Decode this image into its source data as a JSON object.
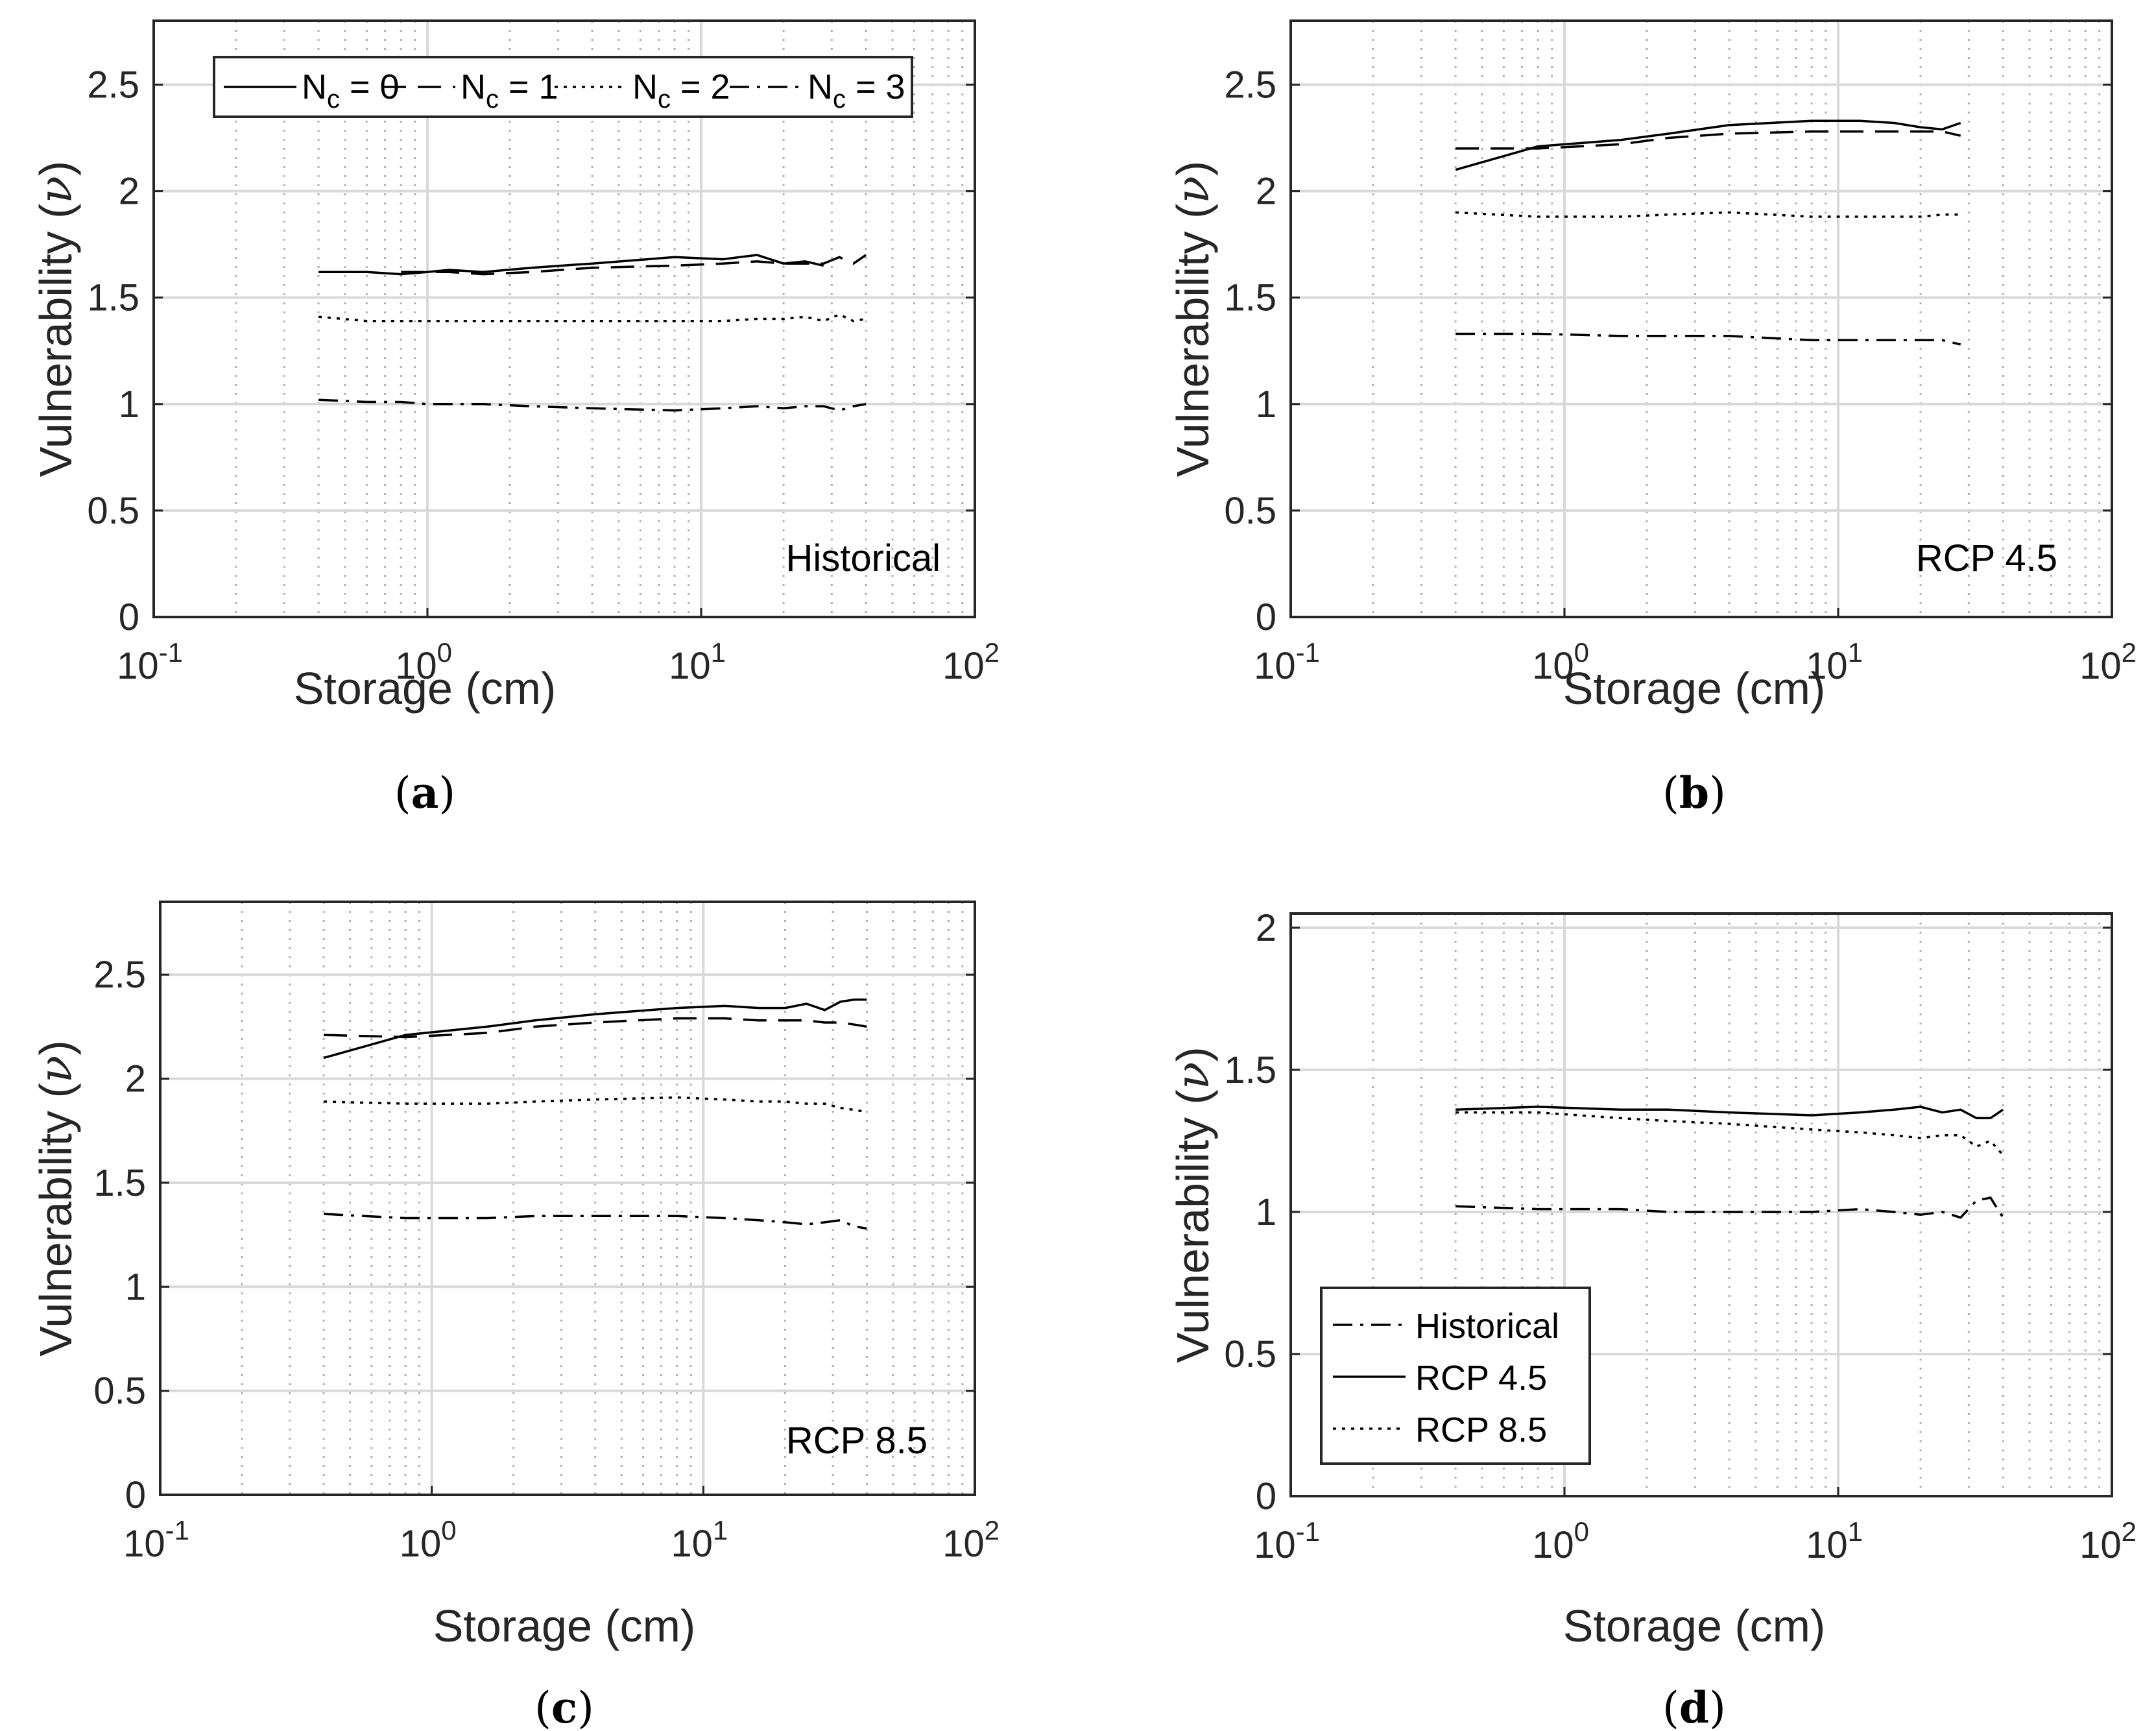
{
  "colors": {
    "axis": "#262626",
    "grid": "#d9d9d9",
    "minor_grid": "#b0b0b0",
    "series": "#000000",
    "background": "#ffffff"
  },
  "chart_data": [
    {
      "id": "a",
      "type": "line",
      "caption_letter": "a",
      "annotation": "Historical",
      "xlabel": "Storage (cm)",
      "ylabel_text": "Vulnerability (",
      "ylabel_symbol": "ν",
      "ylabel_close": ")",
      "xscale": "log",
      "xlim": [
        0.1,
        100
      ],
      "ylim": [
        0,
        2.8
      ],
      "yticks": [
        "0",
        "0.5",
        "1",
        "1.5",
        "2",
        "2.5"
      ],
      "grid": true,
      "legend": {
        "placement": "top",
        "orientation": "horizontal",
        "entries": [
          "N_c = 0",
          "N_c = 1",
          "N_c = 2",
          "N_c = 3"
        ]
      },
      "x": [
        0.4,
        0.6,
        0.8,
        1.0,
        1.2,
        1.6,
        2.4,
        4.0,
        8.0,
        12.0,
        16.0,
        20.0,
        24.0,
        28.0,
        32.0,
        36.0,
        40.0
      ],
      "series": [
        {
          "name": "N_c = 0",
          "dash": "solid",
          "values": [
            1.62,
            1.62,
            1.61,
            1.62,
            1.63,
            1.62,
            1.64,
            1.66,
            1.69,
            1.68,
            1.7,
            1.66,
            1.67,
            1.65,
            null,
            null,
            null
          ]
        },
        {
          "name": "N_c = 1",
          "dash": "dashed",
          "values": [
            null,
            null,
            1.62,
            1.62,
            1.62,
            1.61,
            1.62,
            1.64,
            1.65,
            1.66,
            1.67,
            1.66,
            1.66,
            1.66,
            1.69,
            1.66,
            1.7
          ]
        },
        {
          "name": "N_c = 2",
          "dash": "dotted",
          "values": [
            1.41,
            1.39,
            1.39,
            1.39,
            1.39,
            1.39,
            1.39,
            1.39,
            1.39,
            1.39,
            1.4,
            1.4,
            1.41,
            1.39,
            1.42,
            1.39,
            1.4
          ]
        },
        {
          "name": "N_c = 3",
          "dash": "dashdot",
          "values": [
            1.02,
            1.01,
            1.01,
            1.0,
            1.0,
            1.0,
            0.99,
            0.98,
            0.97,
            0.98,
            0.99,
            0.98,
            0.99,
            0.99,
            0.97,
            0.99,
            1.0
          ]
        }
      ]
    },
    {
      "id": "b",
      "type": "line",
      "caption_letter": "b",
      "annotation": "RCP 4.5",
      "xlabel": "Storage (cm)",
      "ylabel_text": "Vulnerability (",
      "ylabel_symbol": "ν",
      "ylabel_close": ")",
      "xscale": "log",
      "xlim": [
        0.1,
        100
      ],
      "ylim": [
        0,
        2.8
      ],
      "yticks": [
        "0",
        "0.5",
        "1",
        "1.5",
        "2",
        "2.5"
      ],
      "grid": true,
      "x": [
        0.4,
        0.8,
        1.6,
        2.4,
        4.0,
        8.0,
        12.0,
        16.0,
        20.0,
        24.0,
        28.0
      ],
      "series": [
        {
          "name": "N_c = 0",
          "dash": "solid",
          "values": [
            2.1,
            2.21,
            2.24,
            2.27,
            2.31,
            2.33,
            2.33,
            2.32,
            2.3,
            2.29,
            2.32
          ]
        },
        {
          "name": "N_c = 1",
          "dash": "dashed",
          "values": [
            2.2,
            2.2,
            2.22,
            2.25,
            2.27,
            2.28,
            2.28,
            2.28,
            2.28,
            2.28,
            2.26
          ]
        },
        {
          "name": "N_c = 2",
          "dash": "dotted",
          "values": [
            1.9,
            1.88,
            1.88,
            1.89,
            1.9,
            1.88,
            1.88,
            1.88,
            1.88,
            1.89,
            1.89
          ]
        },
        {
          "name": "N_c = 3",
          "dash": "dashdot",
          "values": [
            1.33,
            1.33,
            1.32,
            1.32,
            1.32,
            1.3,
            1.3,
            1.3,
            1.3,
            1.3,
            1.28
          ]
        }
      ]
    },
    {
      "id": "c",
      "type": "line",
      "caption_letter": "c",
      "annotation": "RCP 8.5",
      "xlabel": "Storage (cm)",
      "ylabel_text": "Vulnerability (",
      "ylabel_symbol": "ν",
      "ylabel_close": ")",
      "xscale": "log",
      "xlim": [
        0.1,
        100
      ],
      "ylim": [
        0,
        2.85
      ],
      "yticks": [
        "0",
        "0.5",
        "1",
        "1.5",
        "2",
        "2.5"
      ],
      "grid": true,
      "x": [
        0.4,
        0.8,
        1.6,
        2.4,
        4.0,
        8.0,
        12.0,
        16.0,
        20.0,
        24.0,
        28.0,
        32.0,
        36.0,
        40.0
      ],
      "series": [
        {
          "name": "N_c = 0",
          "dash": "solid",
          "values": [
            2.1,
            2.21,
            2.25,
            2.28,
            2.31,
            2.34,
            2.35,
            2.34,
            2.34,
            2.36,
            2.33,
            2.37,
            2.38,
            2.38
          ]
        },
        {
          "name": "N_c = 1",
          "dash": "dashed",
          "values": [
            2.21,
            2.2,
            2.22,
            2.25,
            2.27,
            2.29,
            2.29,
            2.28,
            2.28,
            2.28,
            2.27,
            2.27,
            2.26,
            2.25
          ]
        },
        {
          "name": "N_c = 2",
          "dash": "dotted",
          "values": [
            1.89,
            1.88,
            1.88,
            1.89,
            1.9,
            1.91,
            1.9,
            1.89,
            1.89,
            1.88,
            1.88,
            1.86,
            1.85,
            1.84
          ]
        },
        {
          "name": "N_c = 3",
          "dash": "dashdot",
          "values": [
            1.35,
            1.33,
            1.33,
            1.34,
            1.34,
            1.34,
            1.33,
            1.32,
            1.31,
            1.3,
            1.31,
            1.32,
            1.29,
            1.28
          ]
        }
      ]
    },
    {
      "id": "d",
      "type": "line",
      "caption_letter": "d",
      "annotation": "",
      "xlabel": "Storage (cm)",
      "ylabel_text": "Vulnerability (",
      "ylabel_symbol": "ν",
      "ylabel_close": ")",
      "xscale": "log",
      "xlim": [
        0.1,
        100
      ],
      "ylim": [
        0,
        2.05
      ],
      "yticks": [
        "0",
        "0.5",
        "1",
        "1.5",
        "2"
      ],
      "grid": true,
      "legend": {
        "placement": "bottom-left",
        "orientation": "vertical",
        "entries": [
          "Historical",
          "RCP 4.5",
          "RCP 8.5"
        ]
      },
      "x": [
        0.4,
        0.8,
        1.6,
        2.4,
        4.0,
        8.0,
        12.0,
        16.0,
        20.0,
        24.0,
        28.0,
        32.0,
        36.0,
        40.0
      ],
      "series": [
        {
          "name": "Historical",
          "dash": "dashdot",
          "values": [
            1.02,
            1.01,
            1.01,
            1.0,
            1.0,
            1.0,
            1.01,
            1.0,
            0.99,
            1.0,
            0.98,
            1.04,
            1.05,
            0.98
          ]
        },
        {
          "name": "RCP 4.5",
          "dash": "solid",
          "values": [
            1.36,
            1.37,
            1.36,
            1.36,
            1.35,
            1.34,
            1.35,
            1.36,
            1.37,
            1.35,
            1.36,
            1.33,
            1.33,
            1.36
          ]
        },
        {
          "name": "RCP 8.5",
          "dash": "dotted",
          "values": [
            1.35,
            1.35,
            1.33,
            1.32,
            1.31,
            1.29,
            1.28,
            1.27,
            1.26,
            1.27,
            1.27,
            1.23,
            1.25,
            1.2
          ]
        }
      ]
    }
  ]
}
